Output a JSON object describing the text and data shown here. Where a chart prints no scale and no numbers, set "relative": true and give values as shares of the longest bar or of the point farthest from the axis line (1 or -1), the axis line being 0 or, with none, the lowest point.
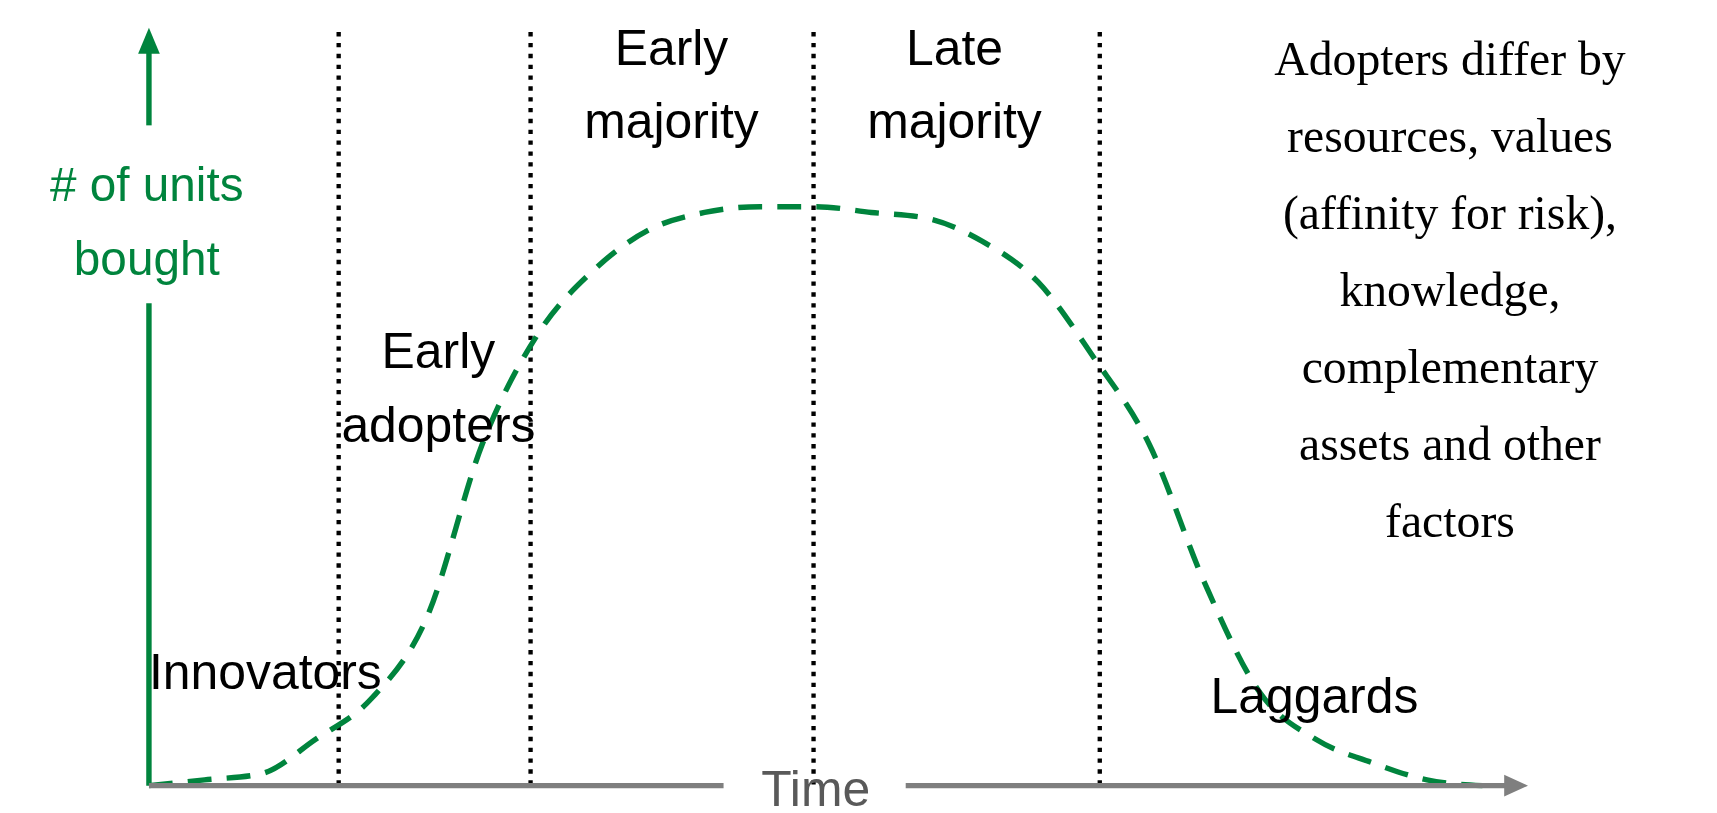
{
  "chart_data": {
    "type": "line",
    "relative": true,
    "xlabel": "Time",
    "ylabel": "# of units bought",
    "categories": [
      null,
      null,
      null,
      null,
      null,
      null,
      null,
      null,
      null,
      null,
      null,
      null,
      null,
      null,
      null,
      null,
      null,
      null,
      null,
      null,
      null,
      null,
      null,
      null,
      null
    ],
    "grid": "x",
    "series": [
      {
        "color": "#00843d",
        "values": [
          0,
          0.01,
          0.02,
          0.08,
          0.15,
          0.29,
          0.59,
          0.78,
          0.89,
          0.96,
          0.99,
          1,
          1,
          0.99,
          0.98,
          0.94,
          0.87,
          0.74,
          0.59,
          0.35,
          0.16,
          0.08,
          0.04,
          0.01,
          0
        ]
      }
    ],
    "line_style": "dashed",
    "marker": "none",
    "annotations": [
      "Innovators",
      "Early\nadopters",
      "Early\nmajority",
      "Late\nmajority",
      "Laggards",
      "Adopters differ by\nresources, values\n(affinity for risk),\nknowledge,\ncomplementary\nassets and other\nfactors"
    ]
  }
}
